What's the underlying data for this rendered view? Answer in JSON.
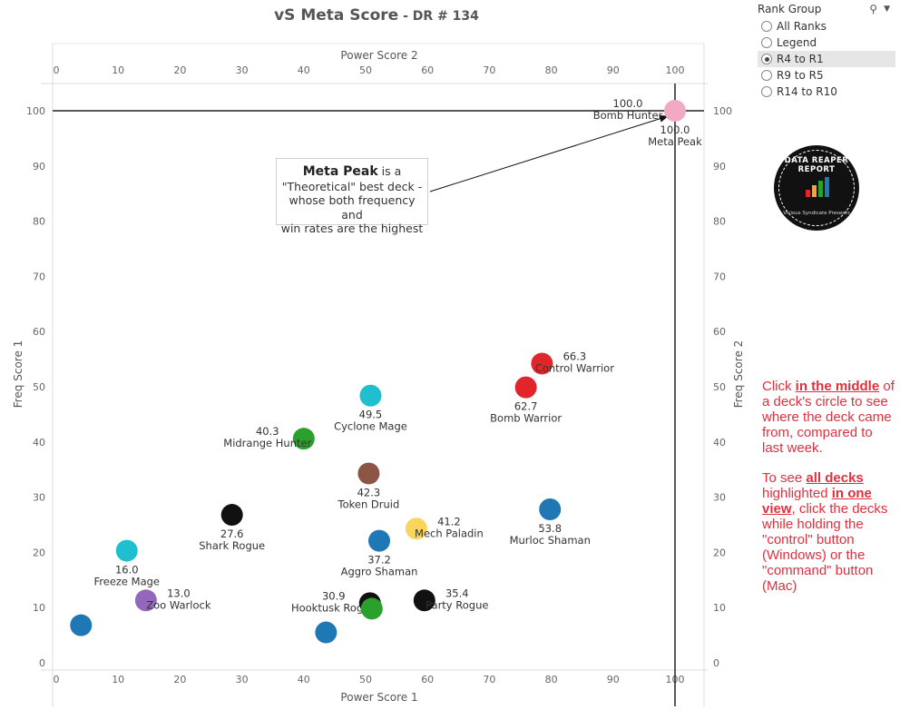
{
  "header": {
    "title": "vS Meta Score",
    "subtitle": " - DR # 134"
  },
  "filter": {
    "title": "Rank Group",
    "options": [
      {
        "label": "All Ranks",
        "selected": false
      },
      {
        "label": "Legend",
        "selected": false
      },
      {
        "label": "R4 to R1",
        "selected": true
      },
      {
        "label": "R9 to R5",
        "selected": false
      },
      {
        "label": "R14 to R10",
        "selected": false
      }
    ]
  },
  "callout": {
    "bold": "Meta Peak",
    "line1": " is a",
    "line2": "\"Theoretical\" best deck -",
    "line3": "whose both frequency and",
    "line4": "win rates are the highest"
  },
  "logo": {
    "text": "DATA REAPER REPORT",
    "bottom_text": "Vicious Syndicate Presents"
  },
  "instructions": {
    "p1_a": "Click ",
    "p1_b": "in the middle",
    "p1_c": " of a deck's circle to see where the deck came from, compared to last week.",
    "p2_a": "To see ",
    "p2_b": "all decks",
    "p2_c": " highlighted ",
    "p2_d": "in one view",
    "p2_e": ", click the decks while holding the \"control\" button (Windows) or the \"command\" button (Mac)"
  },
  "chart_data": {
    "type": "scatter",
    "xlabel": "Power Score 1",
    "xlabel_top": "Power Score 2",
    "ylabel": "Freq Score 1",
    "ylabel_right": "Freq Score 2",
    "xlim": [
      0,
      100
    ],
    "ylim": [
      0,
      100
    ],
    "x_ticks": [
      0,
      10,
      20,
      30,
      40,
      50,
      60,
      70,
      80,
      90,
      100
    ],
    "y_ticks": [
      0,
      10,
      20,
      30,
      40,
      50,
      60,
      70,
      80,
      90,
      100
    ],
    "reference_lines": {
      "x": 100,
      "y": 100
    },
    "points": [
      {
        "name": "Meta Peak",
        "label": "100.0",
        "x": 100,
        "y": 100,
        "color": "#f2aac4",
        "label_pos": "below"
      },
      {
        "name": "Bomb Hunter",
        "label": "100.0",
        "x": 100,
        "y": 100,
        "color": "#f2aac4",
        "label_pos": "left-above",
        "no_dot": true
      },
      {
        "name": "Control Warrior",
        "label": "66.3",
        "x": 78.5,
        "y": 54.2,
        "color": "#e0262b",
        "label_pos": "right"
      },
      {
        "name": "Bomb Warrior",
        "label": "62.7",
        "x": 75.9,
        "y": 49.9,
        "color": "#e0262b",
        "label_pos": "below"
      },
      {
        "name": "Cyclone Mage",
        "label": "49.5",
        "x": 50.8,
        "y": 48.4,
        "color": "#1fbfd0",
        "label_pos": "below"
      },
      {
        "name": "Midrange Hunter",
        "label": "40.3",
        "x": 40.0,
        "y": 40.6,
        "color": "#2ca02c",
        "label_pos": "left"
      },
      {
        "name": "Token Druid",
        "label": "42.3",
        "x": 50.5,
        "y": 34.3,
        "color": "#8c5545",
        "label_pos": "below"
      },
      {
        "name": "Shark Rogue",
        "label": "27.6",
        "x": 28.4,
        "y": 26.8,
        "color": "#111111",
        "label_pos": "below"
      },
      {
        "name": "Mech Paladin",
        "label": "41.2",
        "x": 58.2,
        "y": 24.3,
        "color": "#fad55c",
        "label_pos": "right"
      },
      {
        "name": "Murloc Shaman",
        "label": "53.8",
        "x": 79.8,
        "y": 27.8,
        "color": "#1f77b4",
        "label_pos": "below"
      },
      {
        "name": "Aggro Shaman",
        "label": "37.2",
        "x": 52.2,
        "y": 22.1,
        "color": "#1f77b4",
        "label_pos": "below"
      },
      {
        "name": "Freeze Mage",
        "label": "16.0",
        "x": 11.4,
        "y": 20.3,
        "color": "#1fbfd0",
        "label_pos": "below"
      },
      {
        "name": "Zoo Warlock",
        "label": "13.0",
        "x": 14.5,
        "y": 11.3,
        "color": "#9467bd",
        "label_pos": "right"
      },
      {
        "name": "Party Rogue",
        "label": "35.4",
        "x": 59.5,
        "y": 11.3,
        "color": "#111111",
        "label_pos": "right"
      },
      {
        "name": "Hooktusk Rogue",
        "label": "30.9",
        "x": 50.7,
        "y": 10.8,
        "color": "#111111",
        "label_pos": "left"
      },
      {
        "name": "",
        "label": "",
        "x": 51.0,
        "y": 9.8,
        "color": "#2ca02c",
        "label_pos": "none"
      },
      {
        "name": "",
        "label": "",
        "x": 4.0,
        "y": 6.8,
        "color": "#1f77b4",
        "label_pos": "none"
      },
      {
        "name": "",
        "label": "",
        "x": 43.6,
        "y": 5.5,
        "color": "#1f77b4",
        "label_pos": "none"
      }
    ]
  }
}
